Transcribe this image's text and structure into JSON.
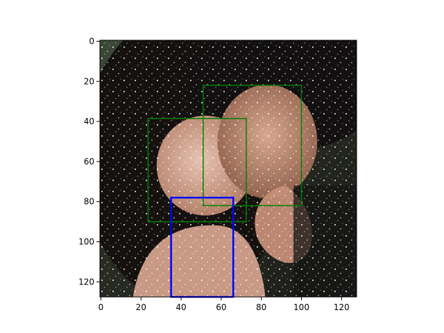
{
  "chart_data": {
    "type": "image_with_boxes",
    "title": "",
    "xlabel": "",
    "ylabel": "",
    "image": {
      "width": 128,
      "height": 128,
      "description_name": "embedded-photo"
    },
    "xlim": [
      -0.5,
      127.5
    ],
    "ylim": [
      127.5,
      -0.5
    ],
    "x_ticks": [
      0,
      20,
      40,
      60,
      80,
      100,
      120
    ],
    "y_ticks": [
      0,
      20,
      40,
      60,
      80,
      100,
      120
    ],
    "x_tick_labels": [
      "0",
      "20",
      "40",
      "60",
      "80",
      "100",
      "120"
    ],
    "y_tick_labels": [
      "0",
      "20",
      "40",
      "60",
      "80",
      "100",
      "120"
    ],
    "grid": false,
    "boxes": [
      {
        "kind": "green",
        "x_min": 51,
        "y_min": 22,
        "x_max": 100,
        "y_max": 82,
        "color": "#008000"
      },
      {
        "kind": "green",
        "x_min": 23.5,
        "y_min": 38.5,
        "x_max": 72.5,
        "y_max": 90,
        "color": "#008000"
      },
      {
        "kind": "blue",
        "x_min": 35,
        "y_min": 78,
        "x_max": 66,
        "y_max": 127.5,
        "color": "#0000ff"
      }
    ]
  },
  "colors": {
    "axes": "#000000",
    "background": "#ffffff",
    "green_box": "#008000",
    "blue_box": "#0000ff"
  }
}
